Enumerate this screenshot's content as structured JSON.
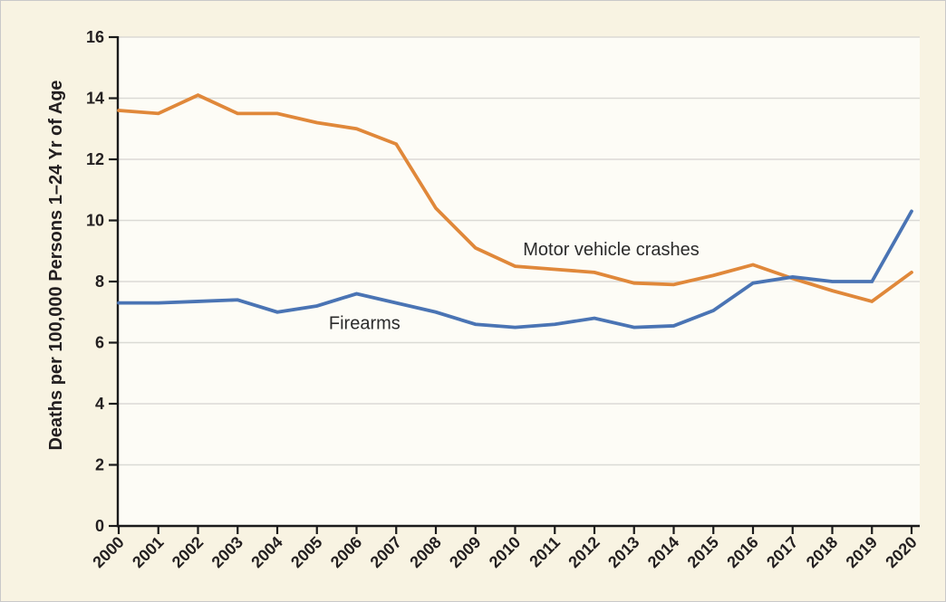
{
  "figure": {
    "background": "#f8f3e2",
    "plot_background": "#fdfcf6",
    "border_color": "#c9c9c9",
    "grid_color": "#dbdad5",
    "axis_color": "#1a1a1a",
    "tick_text_color": "#231f20",
    "annotation_text_color": "#2b2b2b"
  },
  "chart_data": {
    "type": "line",
    "title": "",
    "xlabel": "",
    "ylabel": "Deaths per 100,000 Persons 1–24 Yr of Age",
    "x": [
      2000,
      2001,
      2002,
      2003,
      2004,
      2005,
      2006,
      2007,
      2008,
      2009,
      2010,
      2011,
      2012,
      2013,
      2014,
      2015,
      2016,
      2017,
      2018,
      2019,
      2020
    ],
    "series": [
      {
        "name": "Motor vehicle crashes",
        "color": "#e0883a",
        "values": [
          13.6,
          13.5,
          14.1,
          13.5,
          13.5,
          13.2,
          13.0,
          12.5,
          10.4,
          9.1,
          8.5,
          8.4,
          8.3,
          7.95,
          7.9,
          8.2,
          8.55,
          8.1,
          7.7,
          7.35,
          8.3
        ]
      },
      {
        "name": "Firearms",
        "color": "#4a74b4",
        "values": [
          7.3,
          7.3,
          7.35,
          7.4,
          7.0,
          7.2,
          7.6,
          7.3,
          7.0,
          6.6,
          6.5,
          6.6,
          6.8,
          6.5,
          6.55,
          7.05,
          7.95,
          8.15,
          8.0,
          8.0,
          10.3
        ]
      }
    ],
    "ylim": [
      0,
      16
    ],
    "ytick_step": 2,
    "grid": "horizontal-only",
    "legend": "inline-annotations",
    "annotations": [
      {
        "text": "Motor vehicle crashes",
        "x": 2010.2,
        "y": 8.86
      },
      {
        "text": "Firearms",
        "x": 2005.3,
        "y": 6.45
      }
    ]
  }
}
